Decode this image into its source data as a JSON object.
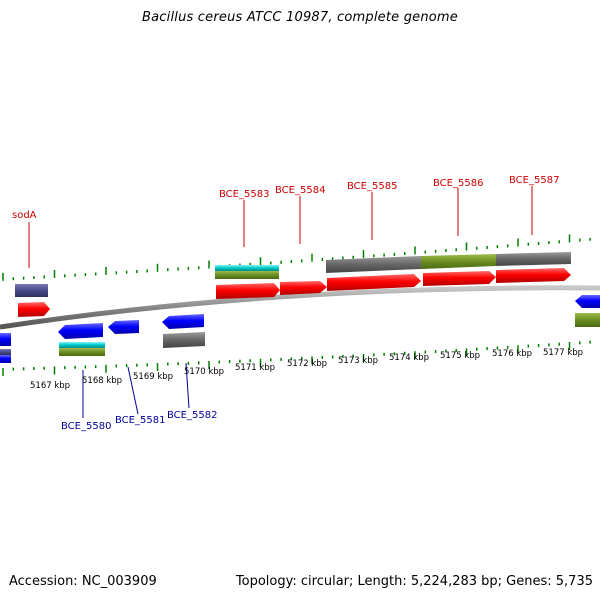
{
  "title": "Bacillus cereus ATCC 10987, complete genome",
  "footer": {
    "accession": "Accession: NC_003909",
    "summary": "Topology: circular; Length: 5,224,283 bp; Genes: 5,735"
  },
  "ticks": [
    "5167 kbp",
    "5168 kbp",
    "5169 kbp",
    "5170 kbp",
    "5171 kbp",
    "5172 kbp",
    "5173 kbp",
    "5174 kbp",
    "5175 kbp",
    "5176 kbp",
    "5177 kbp"
  ],
  "labels_forward": [
    "sodA",
    "BCE_5583",
    "BCE_5584",
    "BCE_5585",
    "BCE_5586",
    "BCE_5587"
  ],
  "labels_reverse": [
    "BCE_5580",
    "BCE_5581",
    "BCE_5582"
  ],
  "colors": {
    "cds_forward": "#ff0000",
    "cds_reverse": "#0000ff",
    "tick": "#008000",
    "backbone": "#888888",
    "cog_gray": "#666666",
    "cog_olive": "#6b8e23",
    "cog_cyan": "#00c8c8",
    "cog_slate": "#4a4a8c"
  }
}
